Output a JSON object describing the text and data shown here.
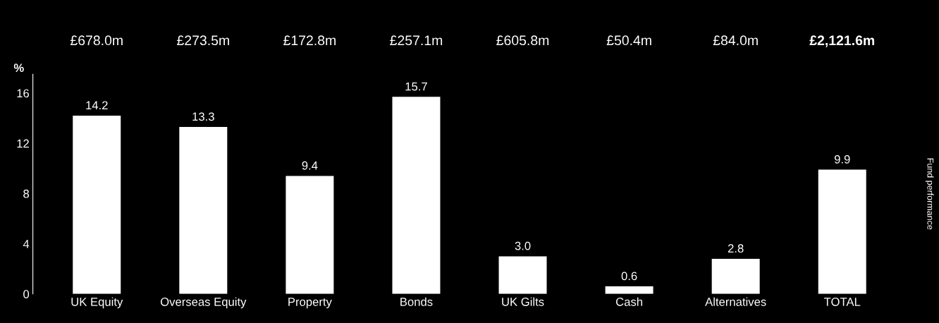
{
  "chart_data": {
    "type": "bar",
    "ylabel": "%",
    "categories": [
      "UK Equity",
      "Overseas Equity",
      "Property",
      "Bonds",
      "UK Gilts",
      "Cash",
      "Alternatives",
      "TOTAL"
    ],
    "values": [
      14.2,
      13.3,
      9.4,
      15.7,
      3.0,
      0.6,
      2.8,
      9.9
    ],
    "color": "#ffffff",
    "value_labels": [
      "14.2",
      "13.3",
      "9.4",
      "15.7",
      "3.0",
      "0.6",
      "2.8",
      "9.9"
    ],
    "ylim": [
      0,
      17.5
    ],
    "yticks": [
      0,
      4,
      8,
      12,
      16
    ],
    "grid": false,
    "legend": false,
    "annotations": [
      "£678.0m",
      "£273.5m",
      "£172.8m",
      "£257.1m",
      "£605.8m",
      "£50.4m",
      "£84.0m",
      "£2,121.6m",
      "Fund performance"
    ]
  }
}
